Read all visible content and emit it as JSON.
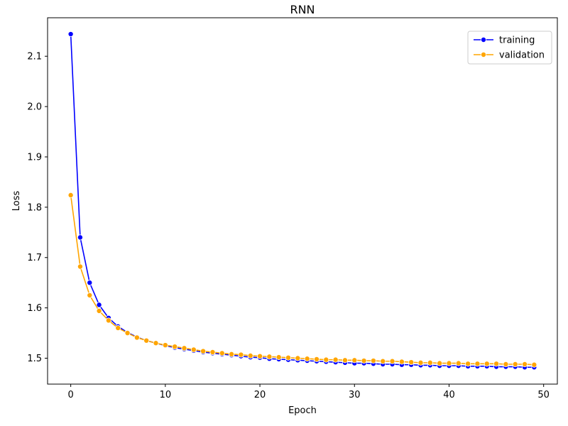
{
  "chart_data": {
    "type": "line",
    "title": "RNN",
    "xlabel": "Epoch",
    "ylabel": "Loss",
    "xlim": [
      -2.45,
      51.45
    ],
    "ylim": [
      1.4485,
      2.1765
    ],
    "xticks": [
      0,
      10,
      20,
      30,
      40,
      50
    ],
    "yticks": [
      1.5,
      1.6,
      1.7,
      1.8,
      1.9,
      2.0,
      2.1
    ],
    "ytick_labels": [
      "1.5",
      "1.6",
      "1.7",
      "1.8",
      "1.9",
      "2.0",
      "2.1"
    ],
    "grid": false,
    "legend_position": "top-right",
    "x": [
      0,
      1,
      2,
      3,
      4,
      5,
      6,
      7,
      8,
      9,
      10,
      11,
      12,
      13,
      14,
      15,
      16,
      17,
      18,
      19,
      20,
      21,
      22,
      23,
      24,
      25,
      26,
      27,
      28,
      29,
      30,
      31,
      32,
      33,
      34,
      35,
      36,
      37,
      38,
      39,
      40,
      41,
      42,
      43,
      44,
      45,
      46,
      47,
      48,
      49
    ],
    "series": [
      {
        "name": "training",
        "color": "#0000ff",
        "values": [
          2.144,
          1.74,
          1.65,
          1.606,
          1.58,
          1.563,
          1.551,
          1.542,
          1.535,
          1.53,
          1.525,
          1.521,
          1.518,
          1.515,
          1.512,
          1.51,
          1.508,
          1.506,
          1.504,
          1.502,
          1.501,
          1.499,
          1.498,
          1.497,
          1.496,
          1.495,
          1.494,
          1.493,
          1.492,
          1.491,
          1.49,
          1.49,
          1.489,
          1.488,
          1.488,
          1.487,
          1.487,
          1.486,
          1.486,
          1.485,
          1.485,
          1.485,
          1.484,
          1.484,
          1.484,
          1.483,
          1.483,
          1.483,
          1.482,
          1.482
        ]
      },
      {
        "name": "validation",
        "color": "#ffa500",
        "values": [
          1.824,
          1.682,
          1.625,
          1.594,
          1.575,
          1.56,
          1.55,
          1.541,
          1.535,
          1.53,
          1.526,
          1.523,
          1.52,
          1.517,
          1.514,
          1.512,
          1.51,
          1.508,
          1.507,
          1.505,
          1.504,
          1.503,
          1.502,
          1.501,
          1.5,
          1.499,
          1.498,
          1.497,
          1.497,
          1.496,
          1.496,
          1.495,
          1.495,
          1.494,
          1.494,
          1.493,
          1.492,
          1.491,
          1.491,
          1.49,
          1.49,
          1.49,
          1.489,
          1.489,
          1.489,
          1.489,
          1.488,
          1.488,
          1.488,
          1.487
        ]
      }
    ]
  }
}
